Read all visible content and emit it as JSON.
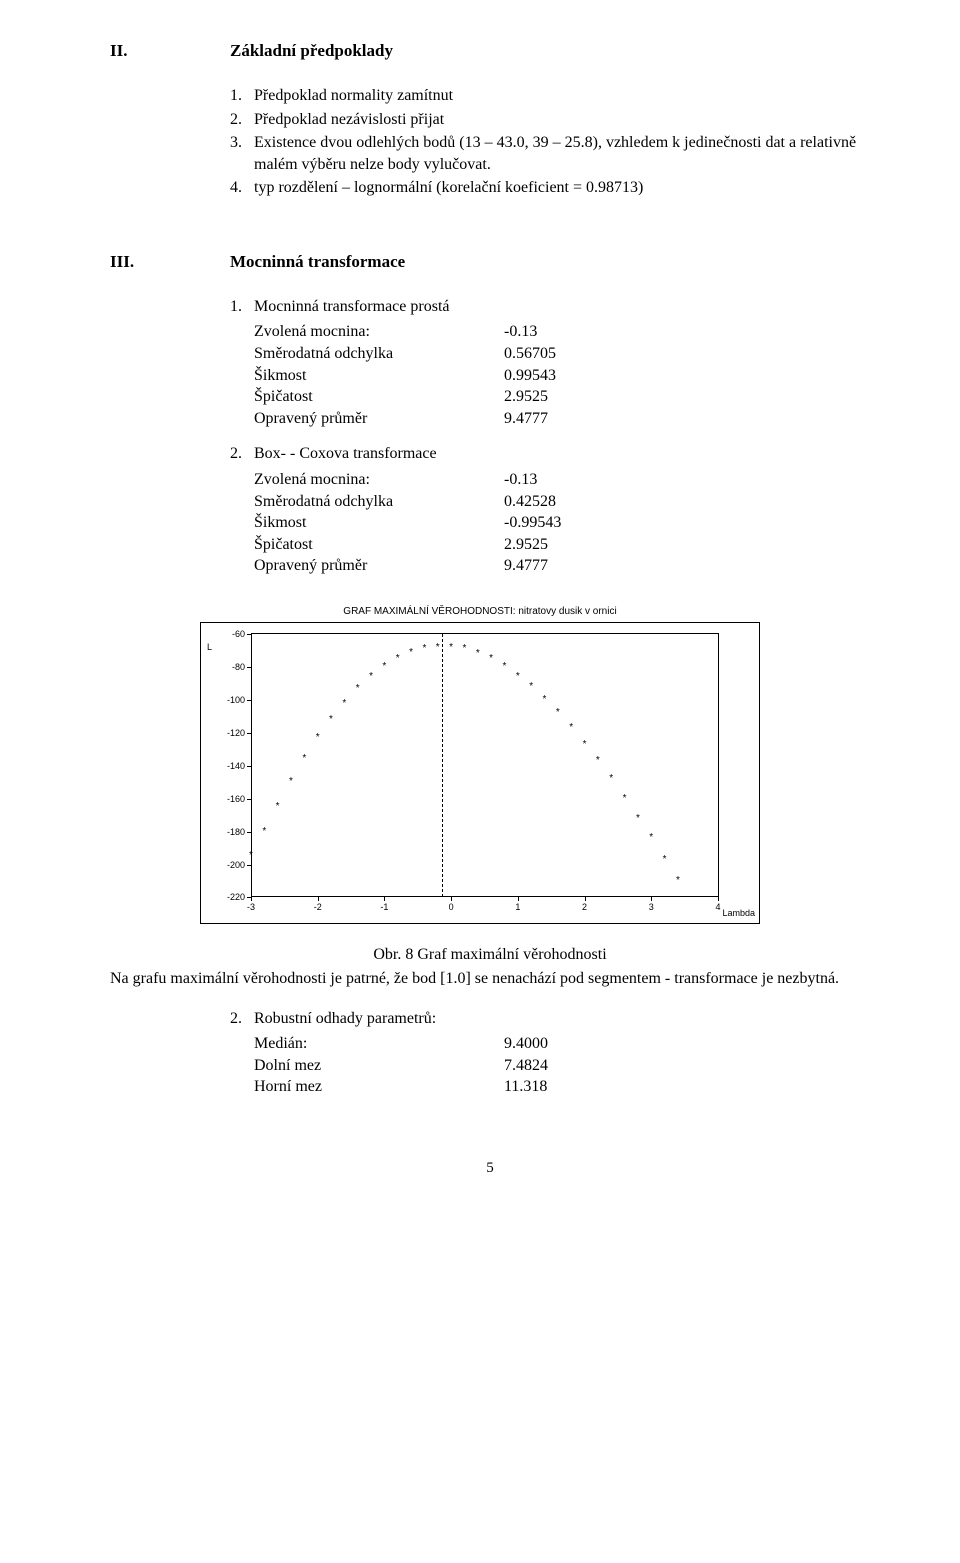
{
  "sec2": {
    "num": "II.",
    "title": "Základní předpoklady",
    "items": [
      {
        "n": "1.",
        "t": "Předpoklad normality zamítnut"
      },
      {
        "n": "2.",
        "t": "Předpoklad nezávislosti přijat"
      },
      {
        "n": "3.",
        "t": "Existence dvou odlehlých bodů (13 – 43.0, 39 – 25.8), vzhledem k jedinečnosti dat a relativně malém výběru nelze body vylučovat."
      },
      {
        "n": "4.",
        "t": "typ rozdělení – lognormální (korelační koeficient = 0.98713)"
      }
    ]
  },
  "sec3": {
    "num": "III.",
    "title": "Mocninná transformace",
    "sub1": {
      "n": "1.",
      "t": "Mocninná transformace prostá",
      "pairs": [
        {
          "k": "Zvolená mocnina:",
          "v": "-0.13"
        },
        {
          "k": "Směrodatná odchylka",
          "v": "0.56705"
        },
        {
          "k": "Šikmost",
          "v": "0.99543"
        },
        {
          "k": "Špičatost",
          "v": "2.9525"
        },
        {
          "k": "Opravený průměr",
          "v": "9.4777"
        }
      ]
    },
    "sub2": {
      "n": "2.",
      "t": "Box- - Coxova transformace",
      "pairs": [
        {
          "k": "Zvolená mocnina:",
          "v": "-0.13"
        },
        {
          "k": "Směrodatná odchylka",
          "v": "0.42528"
        },
        {
          "k": "Šikmost",
          "v": "-0.99543"
        },
        {
          "k": "Špičatost",
          "v": "2.9525"
        },
        {
          "k": "Opravený průměr",
          "v": "9.4777"
        }
      ]
    }
  },
  "chart": {
    "title": "GRAF MAXIMÁLNÍ VĚROHODNOSTI: nitratovy dusik v ornici",
    "y_axis_letter": "L",
    "x_axis_label": "Lambda",
    "xlim": [
      -3,
      4
    ],
    "ylim": [
      -220,
      -60
    ],
    "yticks": [
      -60,
      -80,
      -100,
      -120,
      -140,
      -160,
      -180,
      -200,
      -220
    ],
    "xticks": [
      -3,
      -2,
      -1,
      0,
      1,
      2,
      3,
      4
    ],
    "vline_x": -0.13,
    "marker": "*",
    "marker_color": "#000000",
    "background": "#ffffff",
    "axis_color": "#000000",
    "font_family": "sans-serif",
    "title_fontsize": 10,
    "tick_fontsize": 9,
    "points": [
      [
        -3.0,
        -195
      ],
      [
        -2.8,
        -180
      ],
      [
        -2.6,
        -165
      ],
      [
        -2.4,
        -150
      ],
      [
        -2.2,
        -136
      ],
      [
        -2.0,
        -123
      ],
      [
        -1.8,
        -112
      ],
      [
        -1.6,
        -102
      ],
      [
        -1.4,
        -93
      ],
      [
        -1.2,
        -86
      ],
      [
        -1.0,
        -80
      ],
      [
        -0.8,
        -75
      ],
      [
        -0.6,
        -71
      ],
      [
        -0.4,
        -69
      ],
      [
        -0.2,
        -68
      ],
      [
        0.0,
        -68
      ],
      [
        0.2,
        -69
      ],
      [
        0.4,
        -72
      ],
      [
        0.6,
        -75
      ],
      [
        0.8,
        -80
      ],
      [
        1.0,
        -86
      ],
      [
        1.2,
        -92
      ],
      [
        1.4,
        -100
      ],
      [
        1.6,
        -108
      ],
      [
        1.8,
        -117
      ],
      [
        2.0,
        -127
      ],
      [
        2.2,
        -137
      ],
      [
        2.4,
        -148
      ],
      [
        2.6,
        -160
      ],
      [
        2.8,
        -172
      ],
      [
        3.0,
        -184
      ],
      [
        3.2,
        -197
      ],
      [
        3.4,
        -210
      ]
    ]
  },
  "caption": "Obr. 8 Graf maximální věrohodnosti",
  "note": "Na grafu maximální věrohodnosti je patrné, že bod [1.0] se nenachází pod segmentem - transformace je nezbytná.",
  "sub_robust": {
    "n": "2.",
    "t": "Robustní odhady parametrů:",
    "pairs": [
      {
        "k": "Medián:",
        "v": "9.4000"
      },
      {
        "k": "Dolní mez",
        "v": "7.4824"
      },
      {
        "k": "Horní mez",
        "v": "11.318"
      }
    ]
  },
  "page": "5"
}
